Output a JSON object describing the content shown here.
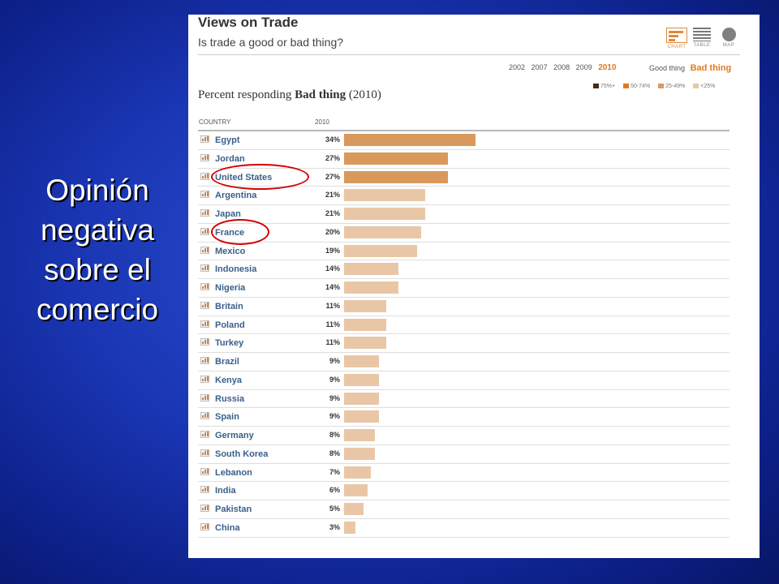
{
  "slide": {
    "caption_lines": [
      "Opinión",
      "negativa",
      "sobre el",
      "comercio"
    ]
  },
  "header": {
    "title": "Views on Trade",
    "subtitle": "Is trade a good or bad thing?"
  },
  "view_tabs": [
    {
      "icon": "chart-icon",
      "label": "CHART",
      "selected": true
    },
    {
      "icon": "table-icon",
      "label": "TABLE",
      "selected": false
    },
    {
      "icon": "map-icon",
      "label": "MAP",
      "selected": false
    }
  ],
  "year_options": [
    "2002",
    "2007",
    "2008",
    "2009",
    "2010"
  ],
  "selected_year": "2010",
  "answer_options": [
    "Good thing",
    "Bad thing"
  ],
  "selected_answer": "Bad thing",
  "legend": [
    {
      "label": "75%+",
      "color": "#4a2a10"
    },
    {
      "label": "50-74%",
      "color": "#e07a20"
    },
    {
      "label": "25-49%",
      "color": "#d9995c"
    },
    {
      "label": "<25%",
      "color": "#e9c7a6"
    }
  ],
  "colors": {
    "bar_25_49": "#d9995c",
    "bar_under_25": "#e9c7a6",
    "country_text": "#3a5f8a",
    "highlight_ring": "#d40000",
    "accent": "#e07a20"
  },
  "chart_data": {
    "type": "bar",
    "orientation": "horizontal",
    "title_prefix": "Percent responding",
    "title_emphasis": "Bad thing",
    "title_suffix": "(2010)",
    "column_headers": {
      "country": "COUNTRY",
      "value": "2010"
    },
    "categories": [
      "Egypt",
      "Jordan",
      "United States",
      "Argentina",
      "Japan",
      "France",
      "Mexico",
      "Indonesia",
      "Nigeria",
      "Britain",
      "Poland",
      "Turkey",
      "Brazil",
      "Kenya",
      "Russia",
      "Spain",
      "Germany",
      "South Korea",
      "Lebanon",
      "India",
      "Pakistan",
      "China"
    ],
    "values": [
      34,
      27,
      27,
      21,
      21,
      20,
      19,
      14,
      14,
      11,
      11,
      11,
      9,
      9,
      9,
      9,
      8,
      8,
      7,
      6,
      5,
      3
    ],
    "value_labels": [
      "34%",
      "27%",
      "27%",
      "21%",
      "21%",
      "20%",
      "19%",
      "14%",
      "14%",
      "11%",
      "11%",
      "11%",
      "9%",
      "9%",
      "9%",
      "9%",
      "8%",
      "8%",
      "7%",
      "6%",
      "5%",
      "3%"
    ],
    "unit": "%",
    "circled": [
      "United States",
      "France"
    ]
  }
}
